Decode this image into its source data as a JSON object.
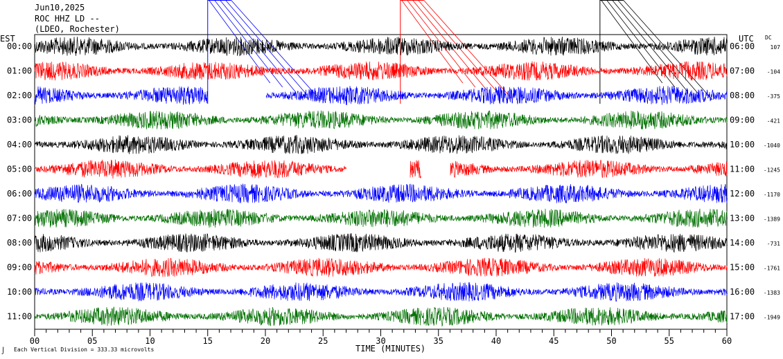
{
  "header": {
    "date": "Jun10,2025",
    "station": "ROC HHZ LD --",
    "network": "(LDEO, Rochester)"
  },
  "axis": {
    "left_tz": "EST",
    "right_tz": "UTC",
    "dc_label": "DC",
    "xlabel": "TIME (MINUTES)",
    "footer_note": "Each Vertical Division =  333.33 microvolts",
    "corner_mark": "⌡"
  },
  "chart_data": {
    "type": "line",
    "title": "ROC HHZ LD --",
    "xlabel": "TIME (MINUTES)",
    "xlim": [
      0,
      60
    ],
    "x_ticks": [
      "00",
      "05",
      "10",
      "15",
      "20",
      "25",
      "30",
      "35",
      "40",
      "45",
      "50",
      "55",
      "60"
    ],
    "colors": [
      "#000000",
      "#ff0000",
      "#0000ff",
      "#007000"
    ],
    "rows": [
      {
        "est": "00:00",
        "utc": "06:00",
        "dc": "107"
      },
      {
        "est": "01:00",
        "utc": "07:00",
        "dc": "-104"
      },
      {
        "est": "02:00",
        "utc": "08:00",
        "dc": "-375"
      },
      {
        "est": "03:00",
        "utc": "09:00",
        "dc": "-421"
      },
      {
        "est": "04:00",
        "utc": "10:00",
        "dc": "-1040"
      },
      {
        "est": "05:00",
        "utc": "11:00",
        "dc": "-1245"
      },
      {
        "est": "06:00",
        "utc": "12:00",
        "dc": "-1170"
      },
      {
        "est": "07:00",
        "utc": "13:00",
        "dc": "-1389"
      },
      {
        "est": "08:00",
        "utc": "14:00",
        "dc": "-731"
      },
      {
        "est": "09:00",
        "utc": "15:00",
        "dc": "-1761"
      },
      {
        "est": "10:00",
        "utc": "16:00",
        "dc": "-1383"
      },
      {
        "est": "11:00",
        "utc": "17:00",
        "dc": "-1949"
      }
    ],
    "trace_gaps_minutes": [
      {
        "row": 1,
        "from": 13.0,
        "to": 13.0
      },
      {
        "row": 2,
        "from": 15.0,
        "to": 20.0
      },
      {
        "row": 2,
        "from": 11.0,
        "to": 11.0
      },
      {
        "row": 5,
        "from": 27.0,
        "to": 32.5
      },
      {
        "row": 5,
        "from": 33.5,
        "to": 36.0
      }
    ],
    "event_markers": [
      {
        "color": "#0000ff",
        "minute": 15.0
      },
      {
        "color": "#ff0000",
        "minute": 31.7
      },
      {
        "color": "#000000",
        "minute": 49.0
      }
    ]
  }
}
